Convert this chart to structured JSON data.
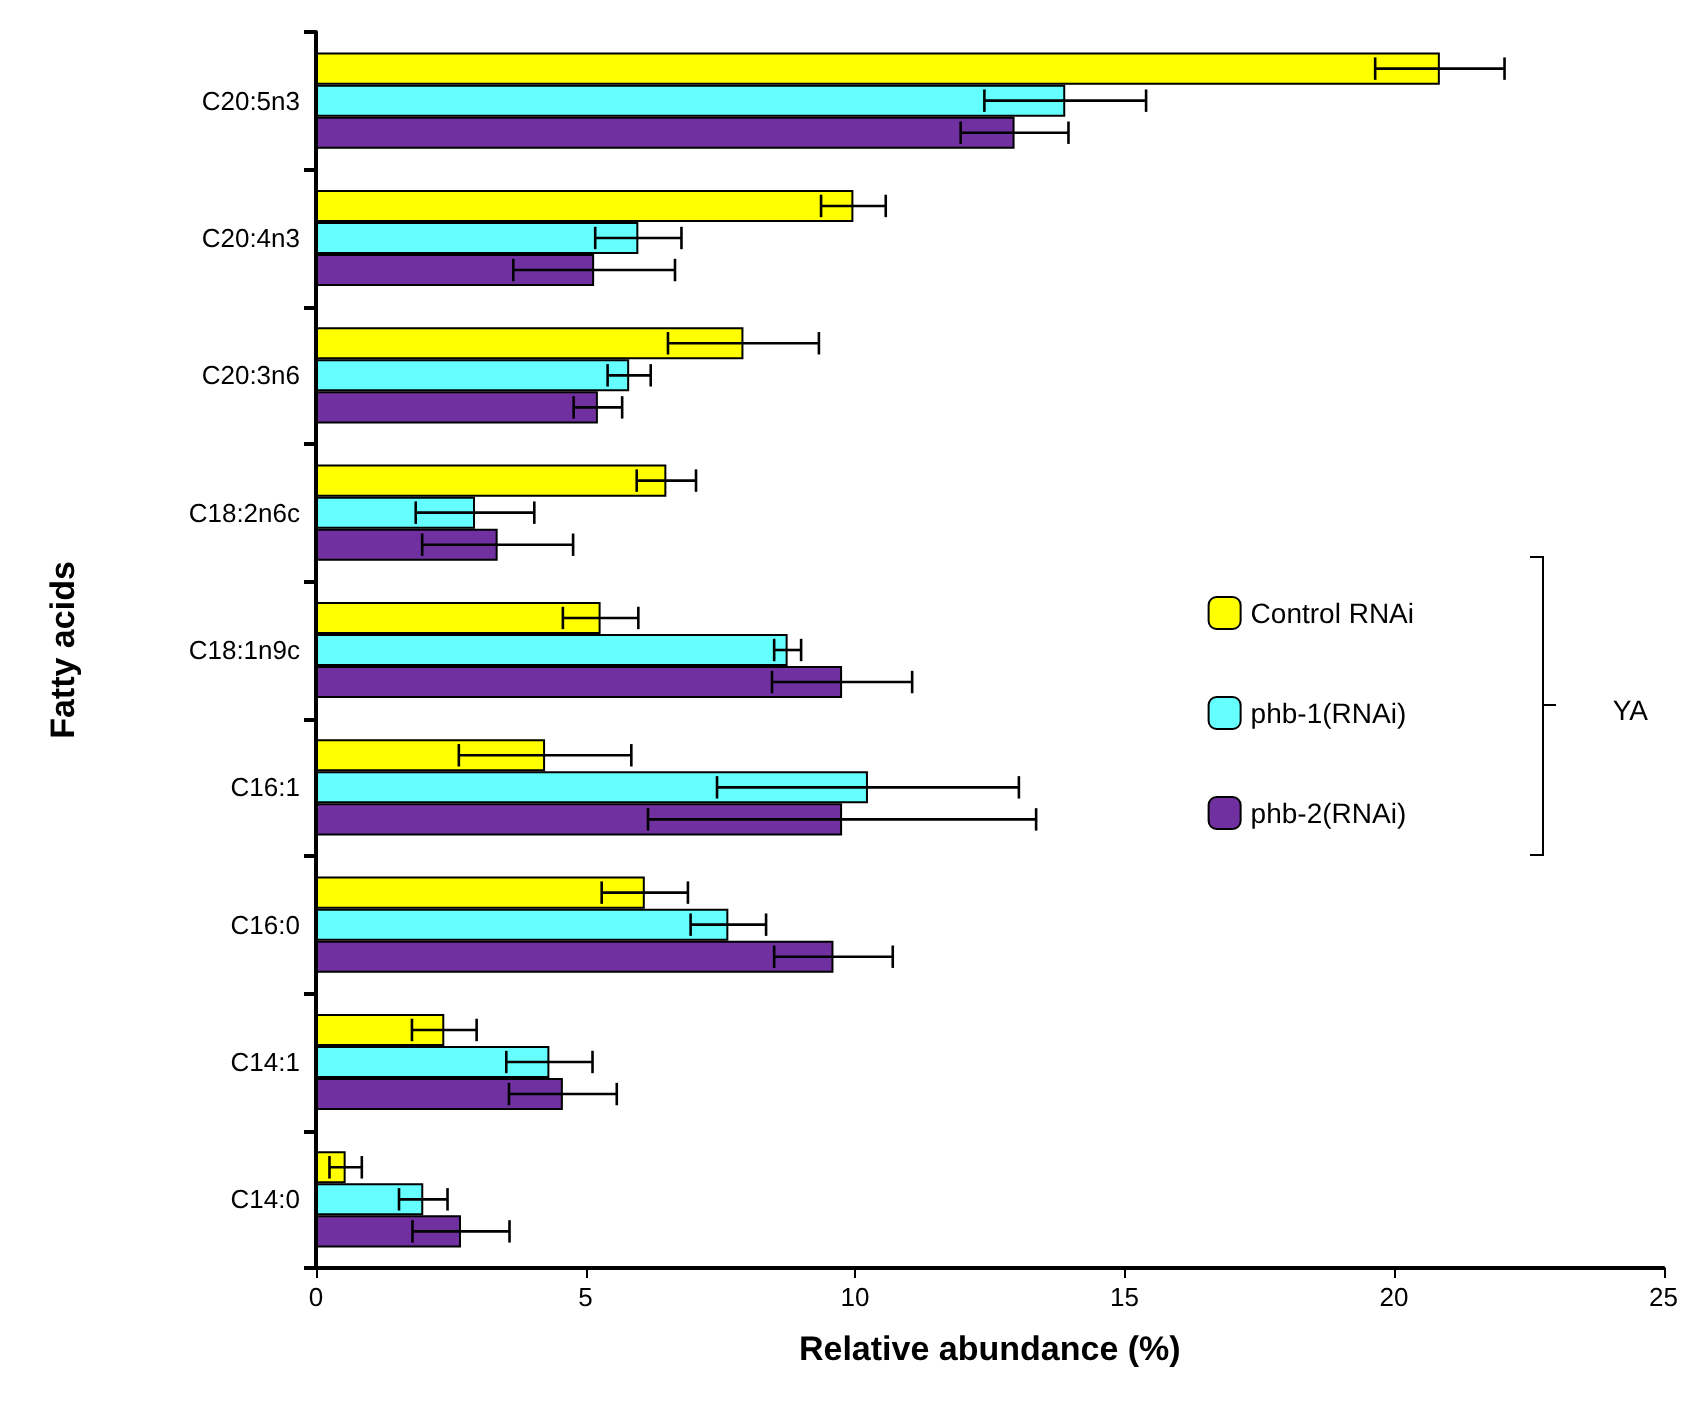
{
  "chart_data": {
    "type": "bar",
    "orientation": "horizontal",
    "xlabel": "Relative abundance (%)",
    "ylabel": "Fatty acids",
    "categories": [
      "C20:5n3",
      "C20:4n3",
      "C20:3n6",
      "C18:2n6c",
      "C18:1n9c",
      "C16:1",
      "C16:0",
      "C14:1",
      "C14:0"
    ],
    "series": [
      {
        "name": "Control RNAi",
        "color": "#ffff00",
        "values": [
          20.85,
          9.97,
          7.93,
          6.5,
          5.28,
          4.25,
          6.1,
          2.38,
          0.55
        ],
        "errors": [
          1.2,
          0.6,
          1.4,
          0.55,
          0.7,
          1.6,
          0.8,
          0.6,
          0.3
        ]
      },
      {
        "name": "phb-1(RNAi)",
        "color": "#66ffff",
        "values": [
          13.9,
          5.98,
          5.81,
          2.95,
          8.75,
          10.24,
          7.65,
          4.33,
          1.99
        ],
        "errors": [
          1.5,
          0.8,
          0.4,
          1.1,
          0.25,
          2.8,
          0.7,
          0.8,
          0.45
        ]
      },
      {
        "name": "phb-2(RNAi)",
        "color": "#7030a0",
        "values": [
          12.96,
          5.16,
          5.23,
          3.37,
          9.76,
          9.76,
          9.6,
          4.58,
          2.69
        ],
        "errors": [
          1.0,
          1.5,
          0.45,
          1.4,
          1.3,
          3.6,
          1.1,
          1.0,
          0.9
        ]
      }
    ],
    "xlim": [
      0,
      25
    ],
    "xticks": [
      0,
      5,
      10,
      15,
      20,
      25
    ],
    "grid": false,
    "legend": "right",
    "annotations": [
      "YA"
    ]
  }
}
